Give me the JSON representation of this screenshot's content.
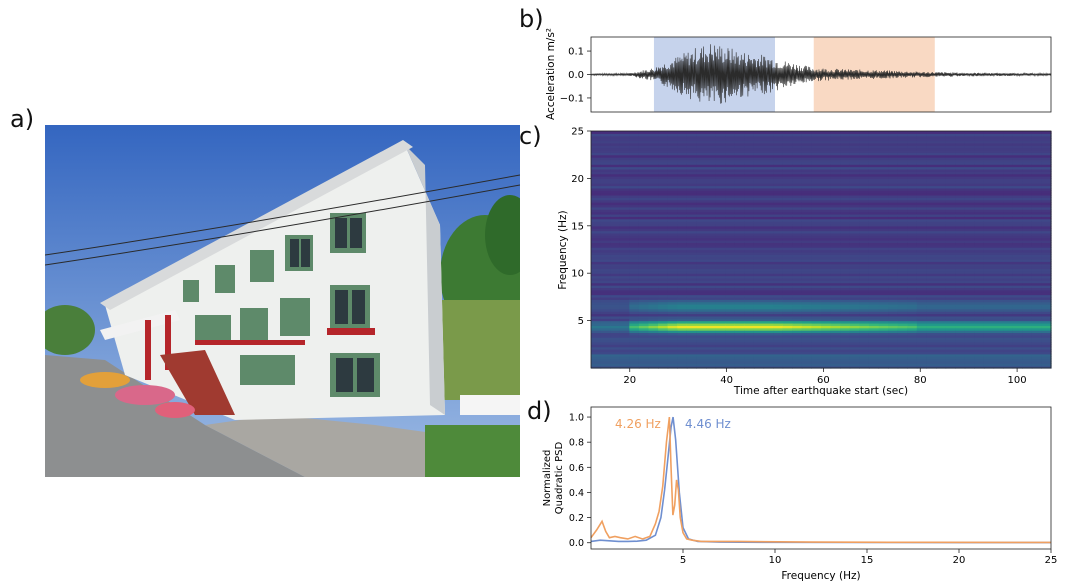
{
  "panels": {
    "a": "a)",
    "b": "b)",
    "c": "c)",
    "d": "d)"
  },
  "photo": {
    "subject": "photo-building",
    "colors": {
      "sky": "#3f6fc4",
      "wall": "#eef0ee",
      "trim": "#5e8a6a",
      "rail": "#b5252a",
      "road": "#8d8f90",
      "foliage": "#3d7a33"
    }
  },
  "chart_data": [
    {
      "panel": "b",
      "type": "line",
      "ylabel": "Acceleration m/s²",
      "yticks": [
        "0.1",
        "0.0",
        "−0.1"
      ],
      "ytick_values": [
        0.1,
        0.0,
        -0.1
      ],
      "ylim": [
        -0.16,
        0.16
      ],
      "xlim": [
        12,
        107
      ],
      "shaded_windows": [
        {
          "x0": 25,
          "x1": 50,
          "color": "#c6d3ec"
        },
        {
          "x0": 58,
          "x1": 83,
          "color": "#f9d9c3"
        }
      ],
      "series_color": "#2b2b2b",
      "envelope": {
        "x": [
          12,
          20,
          25,
          28,
          31,
          34,
          37,
          40,
          43,
          46,
          49,
          52,
          55,
          58,
          62,
          66,
          70,
          75,
          80,
          85,
          90,
          95,
          100,
          107
        ],
        "amp": [
          0.004,
          0.006,
          0.03,
          0.06,
          0.09,
          0.12,
          0.14,
          0.12,
          0.1,
          0.09,
          0.08,
          0.06,
          0.045,
          0.03,
          0.025,
          0.022,
          0.02,
          0.016,
          0.012,
          0.01,
          0.008,
          0.007,
          0.006,
          0.005
        ]
      }
    },
    {
      "panel": "c",
      "type": "heatmap",
      "ylabel": "Frequency (Hz)",
      "xlabel": "Time after earthquake start (sec)",
      "xticks": [
        "20",
        "40",
        "60",
        "80",
        "100"
      ],
      "xtick_values": [
        20,
        40,
        60,
        80,
        100
      ],
      "yticks": [
        "5",
        "10",
        "15",
        "20",
        "25"
      ],
      "ytick_values": [
        5,
        10,
        15,
        20,
        25
      ],
      "xlim": [
        12,
        107
      ],
      "ylim": [
        0,
        25
      ],
      "colormap": "viridis",
      "peak_band_hz": 4.4
    },
    {
      "panel": "d",
      "type": "line",
      "ylabel_lines": [
        "Normalized",
        "Quadratic PSD"
      ],
      "xlabel": "Frequency (Hz)",
      "xticks": [
        "5",
        "10",
        "15",
        "20",
        "25"
      ],
      "xtick_values": [
        5,
        10,
        15,
        20,
        25
      ],
      "yticks": [
        "0.0",
        "0.2",
        "0.4",
        "0.6",
        "0.8",
        "1.0"
      ],
      "ytick_values": [
        0,
        0.2,
        0.4,
        0.6,
        0.8,
        1.0
      ],
      "xlim": [
        0,
        25
      ],
      "ylim": [
        -0.05,
        1.08
      ],
      "annotations": [
        {
          "text": "4.26 Hz",
          "color": "#f0a060"
        },
        {
          "text": "4.46 Hz",
          "color": "#6f8fd0"
        }
      ],
      "series": [
        {
          "color": "#6f8fd0",
          "x": [
            0,
            0.5,
            1,
            1.5,
            2,
            2.5,
            3,
            3.5,
            3.8,
            4.0,
            4.2,
            4.35,
            4.46,
            4.6,
            4.8,
            5.0,
            5.3,
            5.8,
            7,
            10,
            15,
            20,
            25
          ],
          "y": [
            0.01,
            0.02,
            0.015,
            0.01,
            0.01,
            0.012,
            0.02,
            0.06,
            0.2,
            0.42,
            0.7,
            0.92,
            1.0,
            0.82,
            0.4,
            0.12,
            0.03,
            0.01,
            0.005,
            0.003,
            0.002,
            0.001,
            0.001
          ]
        },
        {
          "color": "#f0a060",
          "x": [
            0,
            0.3,
            0.6,
            0.8,
            1.0,
            1.3,
            1.6,
            2.0,
            2.4,
            2.8,
            3.2,
            3.5,
            3.7,
            3.9,
            4.1,
            4.26,
            4.35,
            4.45,
            4.55,
            4.65,
            4.75,
            4.85,
            5.0,
            5.2,
            5.5,
            6,
            8,
            12,
            18,
            25
          ],
          "y": [
            0.04,
            0.1,
            0.17,
            0.09,
            0.04,
            0.05,
            0.04,
            0.03,
            0.05,
            0.03,
            0.05,
            0.15,
            0.25,
            0.45,
            0.8,
            1.0,
            0.6,
            0.22,
            0.3,
            0.5,
            0.42,
            0.2,
            0.08,
            0.03,
            0.02,
            0.01,
            0.01,
            0.005,
            0.003,
            0.002
          ]
        }
      ]
    }
  ]
}
